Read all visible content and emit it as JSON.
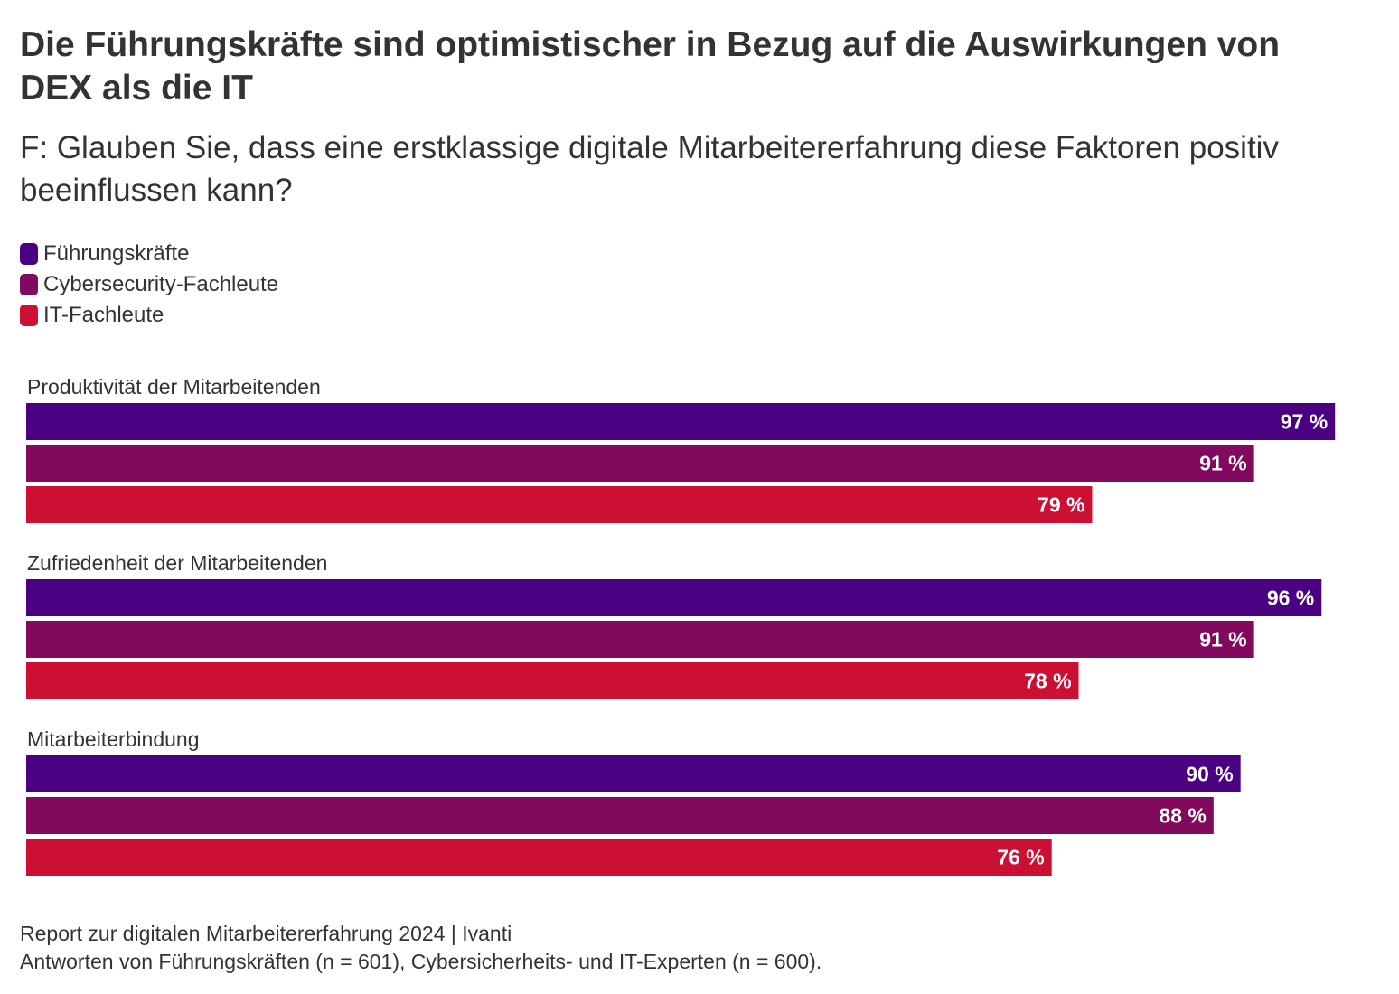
{
  "header": {
    "title": "Die Führungskräfte sind optimistischer in Bezug auf die Auswirkungen von DEX als die IT",
    "subtitle": "F: Glauben Sie, dass eine erstklassige digitale Mitarbeitererfahrung diese Faktoren positiv beeinflussen kann?"
  },
  "legend": {
    "items": [
      {
        "label": "Führungskräfte",
        "color": "#4b0082"
      },
      {
        "label": "Cybersecurity-Fachleute",
        "color": "#820a5e"
      },
      {
        "label": "IT-Fachleute",
        "color": "#cc1034"
      }
    ]
  },
  "chart_data": {
    "type": "bar",
    "orientation": "horizontal",
    "title": "Die Führungskräfte sind optimistischer in Bezug auf die Auswirkungen von DEX als die IT",
    "subtitle": "F: Glauben Sie, dass eine erstklassige digitale Mitarbeitererfahrung diese Faktoren positiv beeinflussen kann?",
    "categories": [
      "Produktivität der Mitarbeitenden",
      "Zufriedenheit der Mitarbeitenden",
      "Mitarbeiterbindung"
    ],
    "series": [
      {
        "name": "Führungskräfte",
        "color": "#4b0082",
        "values": [
          97,
          96,
          90
        ],
        "labels": [
          "97 %",
          "96 %",
          "90 %"
        ]
      },
      {
        "name": "Cybersecurity-Fachleute",
        "color": "#820a5e",
        "values": [
          91,
          91,
          88
        ],
        "labels": [
          "91 %",
          "91 %",
          "88 %"
        ]
      },
      {
        "name": "IT-Fachleute",
        "color": "#cc1034",
        "values": [
          79,
          78,
          76
        ],
        "labels": [
          "79 %",
          "78 %",
          "76 %"
        ]
      }
    ],
    "xlim": [
      0,
      100
    ],
    "grid": false,
    "legend_position": "top-left"
  },
  "footer": {
    "source": "Report zur digitalen Mitarbeitererfahrung 2024 | Ivanti",
    "note": "Antworten von Führungskräften (n = 601), Cybersicherheits- und IT-Experten (n = 600)."
  }
}
